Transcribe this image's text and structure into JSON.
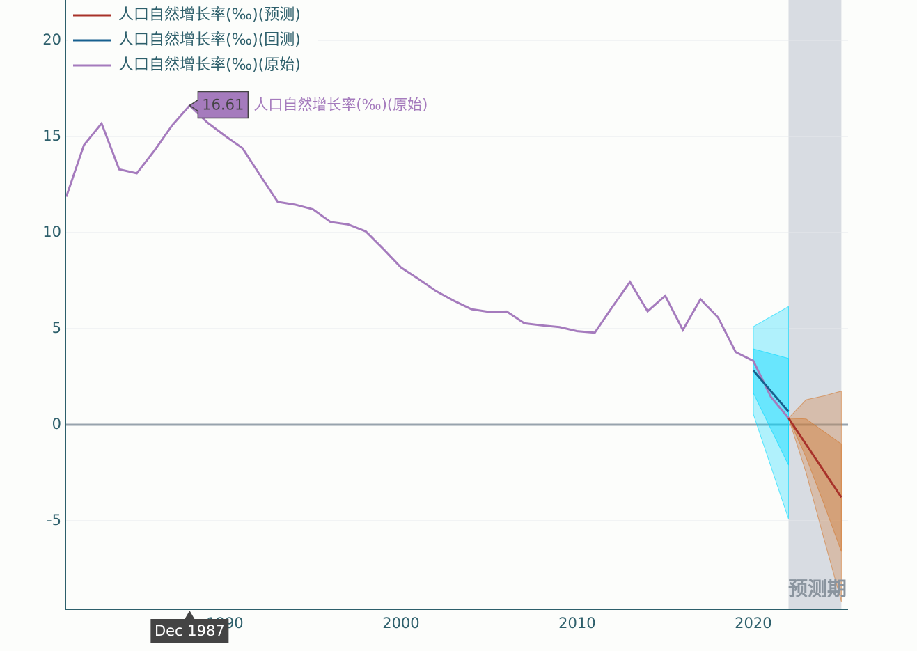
{
  "chart_data": {
    "type": "line",
    "xlim": [
      1980.95,
      2025.38
    ],
    "xticks": [
      1990,
      2000,
      2010,
      2020
    ],
    "ylim": [
      -9.6,
      22.1
    ],
    "yticks": [
      -5,
      0,
      5,
      10,
      15,
      20
    ],
    "grid": true,
    "legend": "top-left",
    "series": [
      {
        "name": "人口自然增长率(‰)(预测)",
        "color": "#a8322a",
        "x": [
          "Dec 2021",
          "Dec 2022",
          "Dec 2023",
          "Dec 2024"
        ],
        "values": [
          0.34,
          -1.03,
          -2.4,
          -3.78
        ]
      },
      {
        "name": "人口自然增长率(‰)(回测)",
        "color": "#17608f",
        "x": [
          "Dec 2019",
          "Dec 2021"
        ],
        "values": [
          2.82,
          0.68
        ]
      },
      {
        "name": "人口自然增长率(‰)(原始)",
        "color": "#a57bbd",
        "x": [
          "Dec 1980",
          "Dec 1981",
          "Dec 1982",
          "Dec 1983",
          "Dec 1984",
          "Dec 1985",
          "Dec 1986",
          "Dec 1987",
          "Dec 1988",
          "Dec 1989",
          "Dec 1990",
          "Dec 1991",
          "Dec 1992",
          "Dec 1993",
          "Dec 1994",
          "Dec 1995",
          "Dec 1996",
          "Dec 1997",
          "Dec 1998",
          "Dec 1999",
          "Dec 2000",
          "Dec 2001",
          "Dec 2002",
          "Dec 2003",
          "Dec 2004",
          "Dec 2005",
          "Dec 2006",
          "Dec 2007",
          "Dec 2008",
          "Dec 2009",
          "Dec 2010",
          "Dec 2011",
          "Dec 2012",
          "Dec 2013",
          "Dec 2014",
          "Dec 2015",
          "Dec 2016",
          "Dec 2017",
          "Dec 2018",
          "Dec 2019",
          "Dec 2020",
          "Dec 2021"
        ],
        "values": [
          11.87,
          14.55,
          15.68,
          13.29,
          13.08,
          14.26,
          15.57,
          16.61,
          15.73,
          15.04,
          14.39,
          12.98,
          11.6,
          11.45,
          11.21,
          10.55,
          10.42,
          10.06,
          9.14,
          8.18,
          7.58,
          6.95,
          6.45,
          6.01,
          5.87,
          5.89,
          5.28,
          5.17,
          5.08,
          4.87,
          4.79,
          6.13,
          7.43,
          5.9,
          6.71,
          4.93,
          6.53,
          5.58,
          3.78,
          3.32,
          1.45,
          0.34
        ]
      }
    ],
    "bands": [
      {
        "color": "#00d8ff",
        "x": [
          "Dec 2019",
          "Dec 2021"
        ],
        "outer_upper": [
          5.1,
          6.15
        ],
        "outer_lower": [
          0.55,
          -4.9
        ],
        "inner_upper": [
          3.95,
          3.45
        ],
        "inner_lower": [
          1.65,
          -2.1
        ]
      },
      {
        "color": "#d2782e",
        "x": [
          "Dec 2021",
          "Dec 2022",
          "Dec 2023",
          "Dec 2024"
        ],
        "outer_upper": [
          0.34,
          1.3,
          1.5,
          1.75
        ],
        "outer_lower": [
          0.34,
          -2.5,
          -5.9,
          -9.2
        ],
        "inner_upper": [
          0.34,
          0.3,
          -0.35,
          -1.0
        ],
        "inner_lower": [
          0.34,
          -1.7,
          -4.1,
          -6.6
        ]
      }
    ],
    "forecast_period": {
      "start": "Dec 2021",
      "end": "Dec 2024",
      "label": "预测期"
    },
    "hover": {
      "series": 2,
      "index": 7
    }
  }
}
